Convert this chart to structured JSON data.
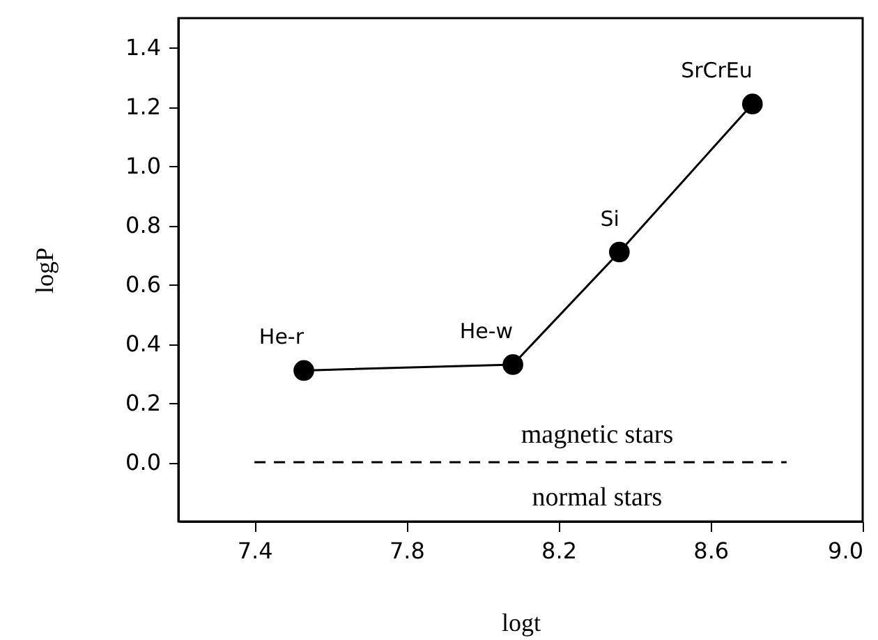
{
  "chart_data": {
    "type": "line",
    "xlabel": "logt",
    "ylabel": "logP",
    "xlim": [
      7.2,
      9.0
    ],
    "xticks": [
      7.4,
      7.8,
      8.2,
      8.6,
      {
        "value": 9,
        "label": "9.0"
      }
    ],
    "ylim": [
      -0.2,
      1.5
    ],
    "yticks": [
      {
        "value": 0,
        "label": "0.0"
      },
      0.2,
      0.4,
      0.6,
      0.8,
      {
        "value": 1,
        "label": "1.0"
      },
      1.2,
      1.4
    ],
    "grid": false,
    "series": [
      {
        "color": "#000000",
        "marker": "circle",
        "line_style": "solid",
        "x": [
          7.53,
          8.08,
          8.36,
          8.71
        ],
        "values": [
          0.31,
          0.33,
          0.71,
          1.21
        ]
      },
      {
        "color": "#000000",
        "marker": "none",
        "line_style": "dashed",
        "x": [
          7.4,
          8.8
        ],
        "values": [
          0.0,
          0.0
        ]
      }
    ],
    "annotations": [
      {
        "text": "He-r",
        "x": 7.53,
        "y": 0.31
      },
      {
        "text": "He-w",
        "x": 8.08,
        "y": 0.33
      },
      {
        "text": "Si",
        "x": 8.36,
        "y": 0.71
      },
      {
        "text": "SrCrEu",
        "x": 8.71,
        "y": 1.21
      },
      "magnetic stars",
      "normal stars"
    ]
  }
}
